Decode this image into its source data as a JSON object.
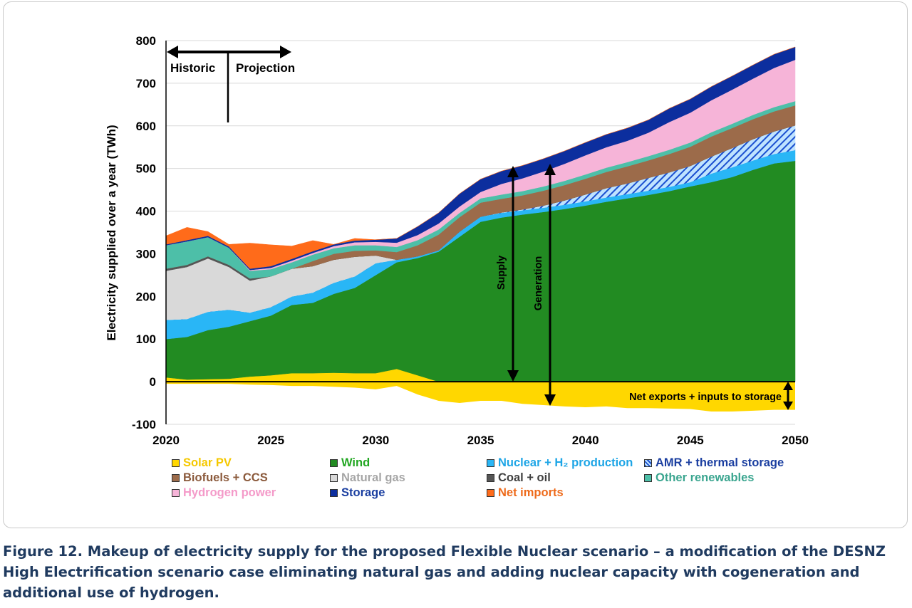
{
  "caption": "Figure 12. Makeup of electricity supply for the proposed Flexible Nuclear scenario – a modification of the DESNZ High Electrification scenario case eliminating natural gas and adding nuclear capacity with cogeneration and additional use of hydrogen.",
  "chart_data": {
    "type": "area",
    "stacked": true,
    "x": [
      2020,
      2021,
      2022,
      2023,
      2024,
      2025,
      2026,
      2027,
      2028,
      2029,
      2030,
      2031,
      2032,
      2033,
      2034,
      2035,
      2036,
      2037,
      2038,
      2039,
      2040,
      2041,
      2042,
      2043,
      2044,
      2045,
      2046,
      2047,
      2048,
      2049,
      2050
    ],
    "ylabel": "Electricity supplied over a year (TWh)",
    "xlabel": "",
    "ylim": [
      -100,
      800
    ],
    "yticks": [
      -100,
      0,
      100,
      200,
      300,
      400,
      500,
      600,
      700,
      800
    ],
    "xticks": [
      2020,
      2025,
      2030,
      2035,
      2040,
      2045,
      2050
    ],
    "series": [
      {
        "name": "Solar PV",
        "color": "#ffd700",
        "values": [
          10,
          5,
          6,
          7,
          12,
          15,
          20,
          20,
          21,
          20,
          20,
          30,
          15,
          0,
          0,
          0,
          0,
          0,
          0,
          0,
          0,
          0,
          0,
          0,
          0,
          0,
          0,
          0,
          0,
          0,
          0
        ]
      },
      {
        "name": "Wind",
        "color": "#228b22",
        "values": [
          90,
          100,
          115,
          122,
          130,
          140,
          160,
          165,
          185,
          200,
          230,
          250,
          275,
          305,
          340,
          375,
          385,
          392,
          398,
          405,
          413,
          422,
          430,
          438,
          447,
          458,
          468,
          480,
          497,
          512,
          518
        ]
      },
      {
        "name": "Nuclear + H₂ production",
        "color": "#29b6f6",
        "values": [
          45,
          42,
          43,
          40,
          20,
          20,
          20,
          24,
          26,
          27,
          28,
          6,
          4,
          3,
          12,
          12,
          11,
          10,
          10,
          10,
          10,
          10,
          10,
          10,
          10,
          10,
          20,
          23,
          22,
          22,
          25
        ]
      },
      {
        "name": "AMR + thermal storage",
        "color": "#1e90ff",
        "pattern": "hatch",
        "values": [
          0,
          0,
          0,
          0,
          0,
          0,
          0,
          0,
          0,
          0,
          0,
          0,
          0,
          0,
          0,
          0,
          1,
          2,
          5,
          10,
          16,
          22,
          25,
          30,
          34,
          38,
          40,
          45,
          50,
          53,
          58
        ]
      },
      {
        "name": "Natural gas",
        "color": "#d9d9d9",
        "values": [
          115,
          122,
          125,
          100,
          75,
          72,
          65,
          62,
          54,
          46,
          18,
          0,
          0,
          0,
          0,
          0,
          0,
          0,
          0,
          0,
          0,
          0,
          0,
          0,
          0,
          0,
          0,
          0,
          0,
          0,
          0
        ]
      },
      {
        "name": "Coal + oil",
        "color": "#555555",
        "values": [
          5,
          5,
          5,
          5,
          5,
          0,
          0,
          0,
          0,
          0,
          0,
          0,
          0,
          0,
          0,
          0,
          0,
          0,
          0,
          0,
          0,
          0,
          0,
          0,
          0,
          0,
          0,
          0,
          0,
          0,
          0
        ]
      },
      {
        "name": "Biofuels + CCS",
        "color": "#9c6b4a",
        "values": [
          0,
          0,
          0,
          0,
          0,
          0,
          0,
          12,
          14,
          14,
          12,
          18,
          26,
          37,
          34,
          33,
          32,
          33,
          35,
          36,
          37,
          38,
          40,
          41,
          43,
          45,
          47,
          47,
          47,
          47,
          47
        ]
      },
      {
        "name": "Other renewables",
        "color": "#4dbfa8",
        "values": [
          55,
          55,
          45,
          40,
          18,
          17,
          15,
          15,
          13,
          13,
          12,
          12,
          12,
          12,
          10,
          10,
          10,
          10,
          10,
          10,
          10,
          10,
          10,
          10,
          10,
          10,
          10,
          10,
          10,
          10,
          10
        ]
      },
      {
        "name": "Hydrogen power",
        "color": "#f6b4d8",
        "values": [
          0,
          0,
          0,
          0,
          2,
          3,
          4,
          4,
          5,
          7,
          8,
          10,
          12,
          14,
          15,
          15,
          25,
          30,
          35,
          40,
          45,
          48,
          50,
          55,
          65,
          70,
          75,
          80,
          85,
          92,
          97
        ]
      },
      {
        "name": "Storage",
        "color": "#0c2e9e",
        "values": [
          2,
          3,
          3,
          3,
          3,
          4,
          4,
          4,
          4,
          4,
          5,
          10,
          20,
          25,
          30,
          30,
          30,
          30,
          30,
          30,
          30,
          30,
          30,
          30,
          32,
          32,
          32,
          32,
          32,
          32,
          30
        ]
      },
      {
        "name": "Net imports",
        "color": "#ff6b1a",
        "values": [
          20,
          30,
          10,
          5,
          60,
          50,
          30,
          25,
          0,
          5,
          0,
          0,
          0,
          0,
          0,
          0,
          0,
          0,
          0,
          0,
          0,
          0,
          0,
          0,
          0,
          0,
          0,
          0,
          0,
          0,
          0
        ]
      },
      {
        "name": "Net exports + inputs to storage",
        "color": "#ffd700",
        "values": [
          -5,
          -5,
          -5,
          -5,
          -7,
          -8,
          -10,
          -10,
          -12,
          -14,
          -18,
          -10,
          -30,
          -45,
          -50,
          -45,
          -45,
          -52,
          -55,
          -58,
          -60,
          -58,
          -62,
          -62,
          -63,
          -64,
          -70,
          -70,
          -68,
          -66,
          -66
        ]
      }
    ],
    "legend": [
      {
        "label": "Solar PV",
        "color": "#ffd700",
        "text_color": "#f5c800"
      },
      {
        "label": "Wind",
        "color": "#228b22",
        "text_color": "#22a722"
      },
      {
        "label": "Nuclear + H₂ production",
        "color": "#29b6f6",
        "text_color": "#1da5e6"
      },
      {
        "label": "AMR + thermal storage",
        "color": "#1e90ff",
        "text_color": "#1a3ea0",
        "hatch": true
      },
      {
        "label": "Biofuels + CCS",
        "color": "#9c6b4a",
        "text_color": "#8b5a3c"
      },
      {
        "label": "Natural gas",
        "color": "#d9d9d9",
        "text_color": "#a6a6a6"
      },
      {
        "label": "Coal + oil",
        "color": "#555555",
        "text_color": "#404040"
      },
      {
        "label": "Other renewables",
        "color": "#4dbfa8",
        "text_color": "#3aa58f"
      },
      {
        "label": "Hydrogen power",
        "color": "#f6b4d8",
        "text_color": "#f49ac9"
      },
      {
        "label": "Storage",
        "color": "#0c2e9e",
        "text_color": "#1a3ea0"
      },
      {
        "label": "Net imports",
        "color": "#ff6b1a",
        "text_color": "#ee6a1a"
      }
    ],
    "legend_position": "bottom",
    "grid": true,
    "annotations": {
      "historic": "Historic",
      "projection": "Projection",
      "supply": "Supply",
      "generation": "Generation",
      "net_exports": "Net exports + inputs to storage"
    }
  }
}
